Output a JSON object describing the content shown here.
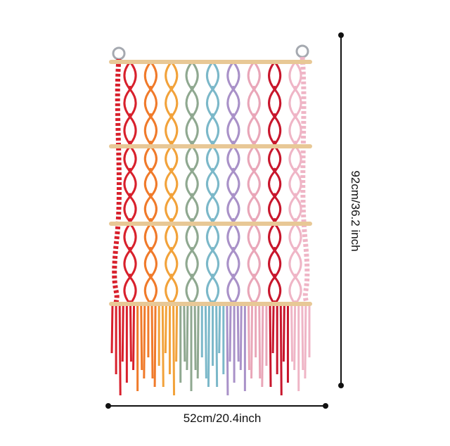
{
  "product": {
    "name": "",
    "palette": [
      "#d8202c",
      "#f07a2a",
      "#f2a23a",
      "#8fa890",
      "#7bb8c9",
      "#a991c8",
      "#e9a6b8",
      "#c8162c",
      "#efb5c6"
    ],
    "rod_color": "#e8c896",
    "ring_color": "#a5a9b0"
  },
  "dimensions": {
    "width_label": "52cm/20.4inch",
    "height_label": "92cm/36.2 inch"
  }
}
